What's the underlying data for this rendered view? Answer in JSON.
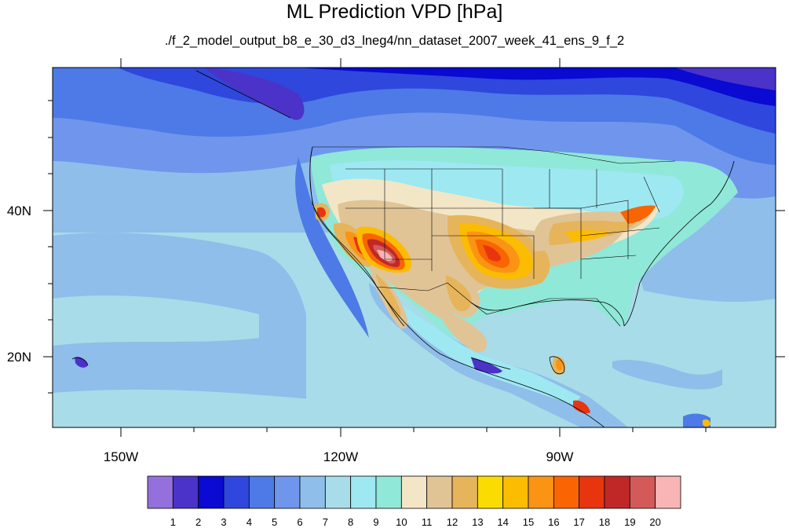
{
  "title": "ML Prediction VPD [hPa]",
  "subtitle": "./f_2_model_output_b8_e_30_d3_lneg4/nn_dataset_2007_week_41_ens_9_f_2",
  "axes": {
    "x_ticks": [
      "150W",
      "120W",
      "90W"
    ],
    "y_ticks": [
      "40N",
      "20N"
    ]
  },
  "colorbar": {
    "colors": [
      "#9370db",
      "#4b32c8",
      "#0a0ad2",
      "#2f47dc",
      "#4d7ae6",
      "#6f96ec",
      "#8fbeea",
      "#a8dce8",
      "#9ee8f2",
      "#90e8d8",
      "#f2e6c6",
      "#e0c496",
      "#e6b45a",
      "#fbdc02",
      "#fcbc02",
      "#fb9414",
      "#f86502",
      "#e8350f",
      "#c02828",
      "#d45a5a",
      "#f9b5b5"
    ],
    "labels": [
      "1",
      "2",
      "3",
      "4",
      "5",
      "6",
      "7",
      "8",
      "9",
      "10",
      "11",
      "12",
      "13",
      "14",
      "15",
      "16",
      "17",
      "18",
      "19",
      "20"
    ]
  }
}
